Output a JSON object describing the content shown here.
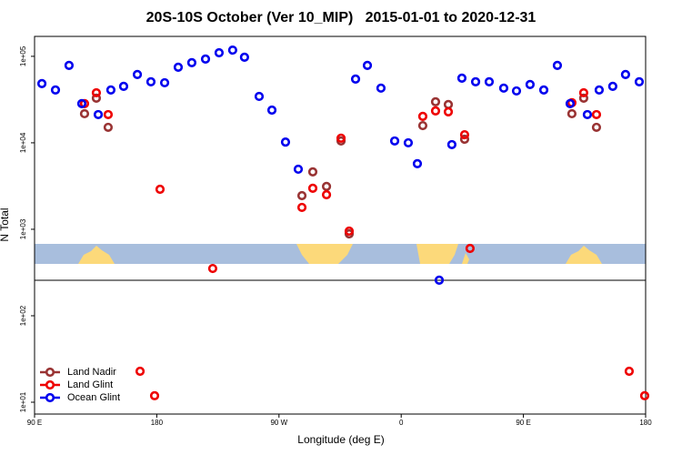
{
  "chart_data": {
    "type": "scatter",
    "title": "20S-10S October (Ver 10_MIP)   2015-01-01 to 2020-12-31",
    "x_label": "Longitude (deg E)",
    "y_label": "N Total",
    "log_y": true,
    "legend": "lower left",
    "xlim": [
      90,
      540
    ],
    "ylim": [
      7.3,
      170000
    ],
    "xticks": [
      {
        "value": 90,
        "label": "90 E"
      },
      {
        "value": 180,
        "label": "180"
      },
      {
        "value": 270,
        "label": "90 W"
      },
      {
        "value": 360,
        "label": "0"
      },
      {
        "value": 450,
        "label": "90 E"
      },
      {
        "value": 540,
        "label": "180"
      }
    ],
    "yticks": [
      {
        "value": 10,
        "label": "1e+01"
      },
      {
        "value": 100,
        "label": "1e+02"
      },
      {
        "value": 1000,
        "label": "1e+03"
      },
      {
        "value": 10000,
        "label": "1e+04"
      },
      {
        "value": 100000,
        "label": "1e+05"
      }
    ],
    "series": [
      {
        "name": "Land Nadir",
        "color": "#993333",
        "x": [
          126.8,
          135.5,
          144.2,
          286.9,
          294.9,
          305,
          315.7,
          321.7,
          375.9,
          385.3,
          394.7,
          406.7,
          485.7,
          494.4,
          503.8
        ],
        "values": [
          21700,
          32800,
          15100,
          2450,
          4610,
          3130,
          10500,
          885,
          15800,
          29800,
          27700,
          11000,
          21700,
          32800,
          15100
        ]
      },
      {
        "name": "Land Glint",
        "color": "#ee0000",
        "x": [
          126.8,
          135.5,
          144.2,
          182.4,
          221.2,
          286.9,
          294.9,
          305,
          315.7,
          321.7,
          375.9,
          385.3,
          394.7,
          406.7,
          410.7,
          485.7,
          494.4,
          503.8,
          167.7,
          178.4,
          527.9,
          539.3
        ],
        "values": [
          28400,
          37900,
          21200,
          2900,
          352,
          1790,
          2980,
          2510,
          11300,
          953,
          20200,
          23400,
          22800,
          12400,
          601,
          29100,
          37900,
          21200,
          22.8,
          11.9,
          22.8,
          11.9
        ]
      },
      {
        "name": "Ocean Glint",
        "color": "#0000ee",
        "x": [
          95.4,
          105.4,
          115.4,
          124.8,
          136.9,
          146.2,
          155.6,
          165.7,
          175.7,
          185.8,
          195.8,
          205.8,
          215.9,
          225.9,
          235.9,
          244.6,
          255.4,
          264.8,
          274.8,
          284.2,
          326.4,
          335.1,
          345.1,
          355.2,
          365.2,
          371.9,
          388,
          397.3,
          404.7,
          414.8,
          424.8,
          435.5,
          444.9,
          454.9,
          465,
          475,
          484.4,
          497.1,
          505.8,
          515.8,
          525.2,
          535.3
        ],
        "values": [
          48400,
          40800,
          78500,
          28400,
          21200,
          40800,
          45000,
          61600,
          50800,
          49500,
          74800,
          84400,
          93000,
          110000,
          118000,
          97600,
          34400,
          23900,
          10200,
          4950,
          54600,
          78500,
          42900,
          10500,
          10000,
          5730,
          258,
          9530,
          55900,
          50800,
          50800,
          42900,
          39800,
          47200,
          40800,
          78500,
          28400,
          21200,
          40800,
          45000,
          61600,
          50800
        ]
      }
    ]
  }
}
